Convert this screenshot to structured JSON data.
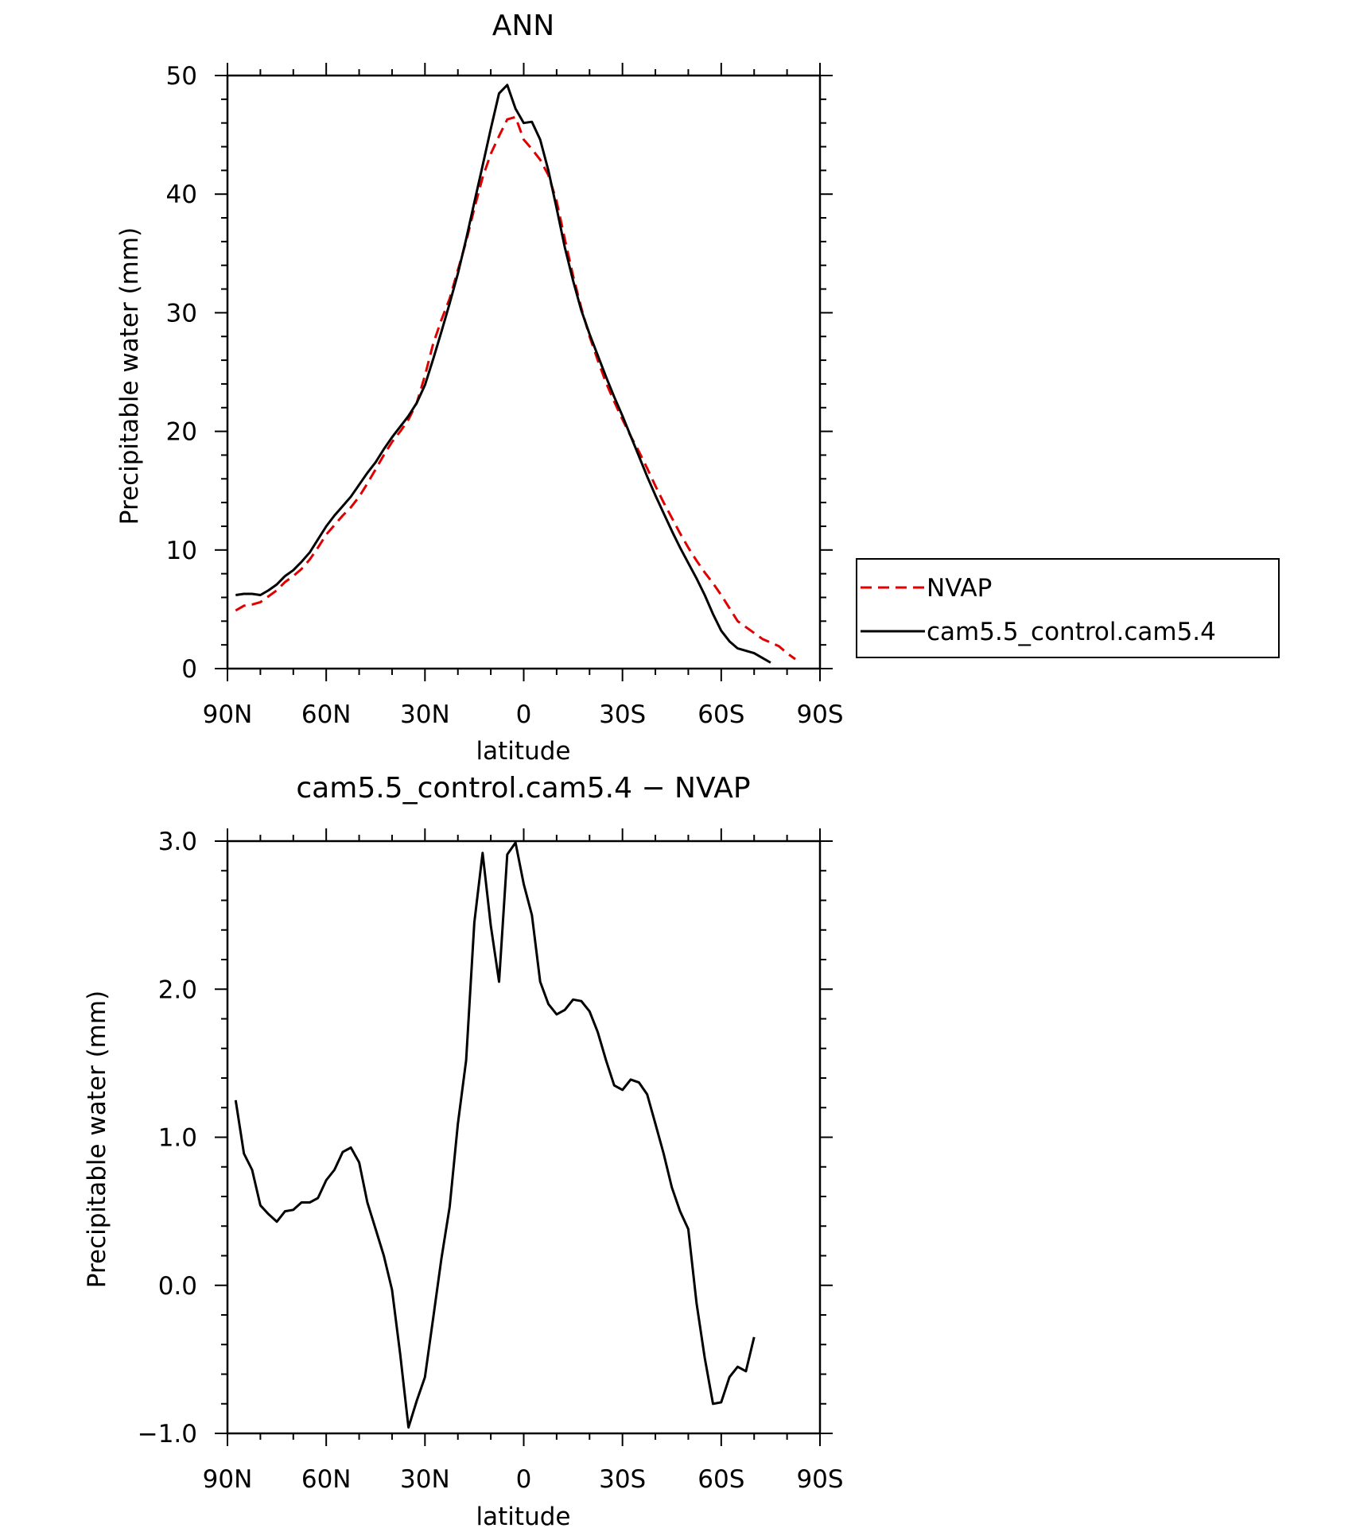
{
  "chart_data": [
    {
      "type": "line",
      "title": "ANN",
      "xlabel": "latitude",
      "ylabel": "Precipitable water (mm)",
      "xlim": [
        -90,
        90
      ],
      "ylim": [
        0,
        50
      ],
      "xticks": [
        "90N",
        "60N",
        "30N",
        "0",
        "30S",
        "60S",
        "90S"
      ],
      "yticks": [
        "0",
        "10",
        "20",
        "30",
        "40",
        "50"
      ],
      "legend": {
        "position": "right",
        "entries": [
          "NVAP",
          "cam5.5_control.cam5.4"
        ]
      },
      "series": [
        {
          "name": "NVAP",
          "color": "#e00000",
          "style": "dashed",
          "points": [
            [
              -87.5,
              4.9
            ],
            [
              -85,
              5.3
            ],
            [
              -82.5,
              5.4
            ],
            [
              -80,
              5.6
            ],
            [
              -77.5,
              6.1
            ],
            [
              -75,
              6.6
            ],
            [
              -72.5,
              7.3
            ],
            [
              -70,
              7.8
            ],
            [
              -67.5,
              8.4
            ],
            [
              -65,
              9.2
            ],
            [
              -62.5,
              10.2
            ],
            [
              -60,
              11.3
            ],
            [
              -57.5,
              12.1
            ],
            [
              -55,
              12.9
            ],
            [
              -52.5,
              13.6
            ],
            [
              -50,
              14.5
            ],
            [
              -47.5,
              15.6
            ],
            [
              -45,
              16.8
            ],
            [
              -42.5,
              18.0
            ],
            [
              -40,
              19.1
            ],
            [
              -37.5,
              20.0
            ],
            [
              -35,
              21.0
            ],
            [
              -32.5,
              22.4
            ],
            [
              -30,
              24.7
            ],
            [
              -27.5,
              27.4
            ],
            [
              -25,
              29.4
            ],
            [
              -22.5,
              31.2
            ],
            [
              -20,
              33.6
            ],
            [
              -17.5,
              36.0
            ],
            [
              -15,
              38.8
            ],
            [
              -12.5,
              41.4
            ],
            [
              -10,
              43.4
            ],
            [
              -7.5,
              44.9
            ],
            [
              -5,
              46.3
            ],
            [
              -2.5,
              46.5
            ],
            [
              0,
              44.6
            ],
            [
              2.5,
              43.8
            ],
            [
              5,
              42.9
            ],
            [
              7.5,
              41.6
            ],
            [
              10,
              39.4
            ],
            [
              12.5,
              36.2
            ],
            [
              15,
              33.1
            ],
            [
              17.5,
              30.4
            ],
            [
              20,
              28.0
            ],
            [
              22.5,
              26.0
            ],
            [
              25,
              24.1
            ],
            [
              27.5,
              22.5
            ],
            [
              30,
              21.0
            ],
            [
              32.5,
              19.6
            ],
            [
              35,
              18.3
            ],
            [
              37.5,
              16.9
            ],
            [
              40,
              15.4
            ],
            [
              42.5,
              14.0
            ],
            [
              45,
              12.7
            ],
            [
              47.5,
              11.4
            ],
            [
              50,
              10.2
            ],
            [
              52.5,
              9.1
            ],
            [
              55,
              8.1
            ],
            [
              57.5,
              7.2
            ],
            [
              60,
              6.2
            ],
            [
              62.5,
              5.1
            ],
            [
              65,
              4.0
            ],
            [
              67.5,
              3.5
            ],
            [
              70,
              3.0
            ],
            [
              72.5,
              2.5
            ],
            [
              75,
              2.2
            ],
            [
              77.5,
              1.9
            ],
            [
              80,
              1.3
            ],
            [
              82.5,
              0.8
            ]
          ]
        },
        {
          "name": "cam5.5_control.cam5.4",
          "color": "#000000",
          "style": "solid",
          "points": [
            [
              -87.5,
              6.2
            ],
            [
              -85,
              6.3
            ],
            [
              -82.5,
              6.3
            ],
            [
              -80,
              6.2
            ],
            [
              -77.5,
              6.6
            ],
            [
              -75,
              7.1
            ],
            [
              -72.5,
              7.8
            ],
            [
              -70,
              8.3
            ],
            [
              -67.5,
              9.0
            ],
            [
              -65,
              9.8
            ],
            [
              -62.5,
              10.9
            ],
            [
              -60,
              12.0
            ],
            [
              -57.5,
              12.9
            ],
            [
              -55,
              13.7
            ],
            [
              -52.5,
              14.5
            ],
            [
              -50,
              15.5
            ],
            [
              -47.5,
              16.5
            ],
            [
              -45,
              17.4
            ],
            [
              -42.5,
              18.5
            ],
            [
              -40,
              19.5
            ],
            [
              -37.5,
              20.4
            ],
            [
              -35,
              21.3
            ],
            [
              -32.5,
              22.4
            ],
            [
              -30,
              23.9
            ],
            [
              -27.5,
              26.1
            ],
            [
              -25,
              28.4
            ],
            [
              -22.5,
              30.8
            ],
            [
              -20,
              33.3
            ],
            [
              -17.5,
              36.2
            ],
            [
              -15,
              39.3
            ],
            [
              -12.5,
              42.4
            ],
            [
              -10,
              45.5
            ],
            [
              -7.5,
              48.5
            ],
            [
              -5,
              49.2
            ],
            [
              -2.5,
              47.2
            ],
            [
              0,
              46.0
            ],
            [
              2.5,
              46.1
            ],
            [
              5,
              44.6
            ],
            [
              7.5,
              42.0
            ],
            [
              10,
              38.8
            ],
            [
              12.5,
              35.5
            ],
            [
              15,
              32.7
            ],
            [
              17.5,
              30.2
            ],
            [
              20,
              28.2
            ],
            [
              22.5,
              26.4
            ],
            [
              25,
              24.6
            ],
            [
              27.5,
              22.9
            ],
            [
              30,
              21.3
            ],
            [
              32.5,
              19.6
            ],
            [
              35,
              17.9
            ],
            [
              37.5,
              16.2
            ],
            [
              40,
              14.6
            ],
            [
              42.5,
              13.1
            ],
            [
              45,
              11.6
            ],
            [
              47.5,
              10.2
            ],
            [
              50,
              8.9
            ],
            [
              52.5,
              7.6
            ],
            [
              55,
              6.2
            ],
            [
              57.5,
              4.6
            ],
            [
              60,
              3.2
            ],
            [
              62.5,
              2.3
            ],
            [
              65,
              1.7
            ],
            [
              67.5,
              1.5
            ],
            [
              70,
              1.3
            ],
            [
              72.5,
              0.9
            ],
            [
              75,
              0.5
            ]
          ]
        }
      ]
    },
    {
      "type": "line",
      "title": "cam5.5_control.cam5.4 − NVAP",
      "xlabel": "latitude",
      "ylabel": "Precipitable water (mm)",
      "xlim": [
        -90,
        90
      ],
      "ylim": [
        -1.0,
        3.0
      ],
      "xticks": [
        "90N",
        "60N",
        "30N",
        "0",
        "30S",
        "60S",
        "90S"
      ],
      "yticks": [
        "−1.0",
        "0.0",
        "1.0",
        "2.0",
        "3.0"
      ],
      "series": [
        {
          "color": "#000000",
          "style": "solid",
          "points": [
            [
              -87.5,
              1.25
            ],
            [
              -85,
              0.89
            ],
            [
              -82.5,
              0.78
            ],
            [
              -80,
              0.54
            ],
            [
              -77.5,
              0.48
            ],
            [
              -75,
              0.43
            ],
            [
              -72.5,
              0.5
            ],
            [
              -70,
              0.51
            ],
            [
              -67.5,
              0.56
            ],
            [
              -65,
              0.56
            ],
            [
              -62.5,
              0.59
            ],
            [
              -60,
              0.71
            ],
            [
              -57.5,
              0.78
            ],
            [
              -55,
              0.9
            ],
            [
              -52.5,
              0.93
            ],
            [
              -50,
              0.83
            ],
            [
              -47.5,
              0.56
            ],
            [
              -45,
              0.38
            ],
            [
              -42.5,
              0.2
            ],
            [
              -40,
              -0.03
            ],
            [
              -37.5,
              -0.47
            ],
            [
              -35,
              -0.96
            ],
            [
              -32.5,
              -0.78
            ],
            [
              -30,
              -0.62
            ],
            [
              -27.5,
              -0.22
            ],
            [
              -25,
              0.18
            ],
            [
              -22.5,
              0.53
            ],
            [
              -20,
              1.09
            ],
            [
              -17.5,
              1.52
            ],
            [
              -15,
              2.45
            ],
            [
              -12.5,
              2.92
            ],
            [
              -10,
              2.43
            ],
            [
              -7.5,
              2.05
            ],
            [
              -5,
              2.91
            ],
            [
              -2.5,
              2.99
            ],
            [
              0,
              2.71
            ],
            [
              2.5,
              2.5
            ],
            [
              5,
              2.05
            ],
            [
              7.5,
              1.9
            ],
            [
              10,
              1.83
            ],
            [
              12.5,
              1.86
            ],
            [
              15,
              1.93
            ],
            [
              17.5,
              1.92
            ],
            [
              20,
              1.85
            ],
            [
              22.5,
              1.71
            ],
            [
              25,
              1.52
            ],
            [
              27.5,
              1.35
            ],
            [
              30,
              1.32
            ],
            [
              32.5,
              1.39
            ],
            [
              35,
              1.37
            ],
            [
              37.5,
              1.29
            ],
            [
              40,
              1.09
            ],
            [
              42.5,
              0.89
            ],
            [
              45,
              0.66
            ],
            [
              47.5,
              0.5
            ],
            [
              50,
              0.38
            ],
            [
              52.5,
              -0.12
            ],
            [
              55,
              -0.49
            ],
            [
              57.5,
              -0.8
            ],
            [
              60,
              -0.79
            ],
            [
              62.5,
              -0.62
            ],
            [
              65,
              -0.55
            ],
            [
              67.5,
              -0.58
            ],
            [
              70,
              -0.35
            ]
          ]
        }
      ]
    }
  ]
}
